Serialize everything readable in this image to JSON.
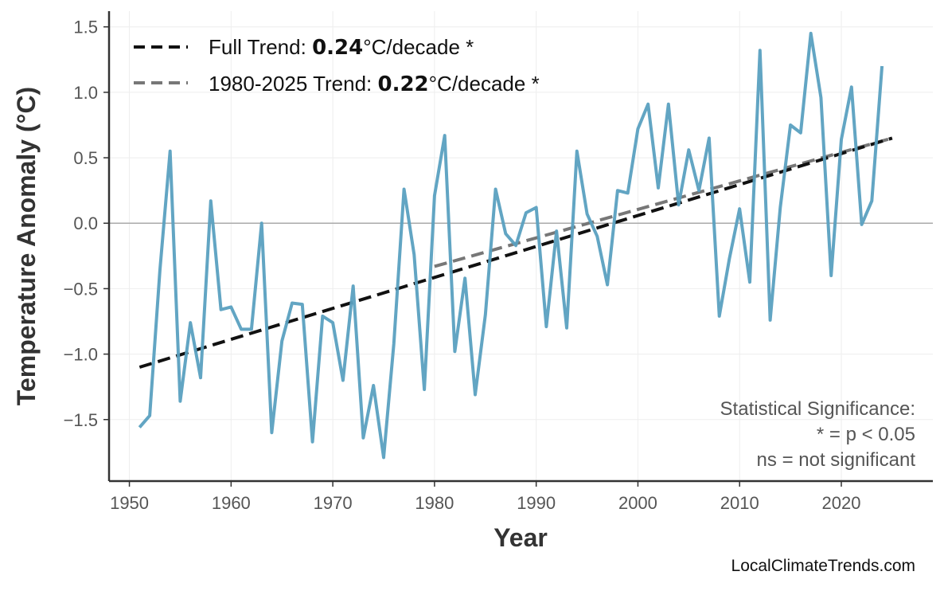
{
  "chart_data": {
    "type": "line",
    "title": "",
    "xlabel": "Year",
    "ylabel": "Temperature Anomaly (°C)",
    "xlim": [
      1948,
      2029
    ],
    "ylim": [
      -1.97,
      1.62
    ],
    "grid": true,
    "xticks": [
      1950,
      1960,
      1970,
      1980,
      1990,
      2000,
      2010,
      2020
    ],
    "yticks": [
      -1.5,
      -1.0,
      -0.5,
      0.0,
      0.5,
      1.0,
      1.5
    ],
    "ytick_labels": [
      "−1.5",
      "−1.0",
      "−0.5",
      "0.0",
      "0.5",
      "1.0",
      "1.5"
    ],
    "series": [
      {
        "color": "#5aa0c0",
        "x": [
          1951,
          1952,
          1953,
          1954,
          1955,
          1956,
          1957,
          1958,
          1959,
          1960,
          1961,
          1962,
          1963,
          1964,
          1965,
          1966,
          1967,
          1968,
          1969,
          1970,
          1971,
          1972,
          1973,
          1974,
          1975,
          1976,
          1977,
          1978,
          1979,
          1980,
          1981,
          1982,
          1983,
          1984,
          1985,
          1986,
          1987,
          1988,
          1989,
          1990,
          1991,
          1992,
          1993,
          1994,
          1995,
          1996,
          1997,
          1998,
          1999,
          2000,
          2001,
          2002,
          2003,
          2004,
          2005,
          2006,
          2007,
          2008,
          2009,
          2010,
          2011,
          2012,
          2013,
          2014,
          2015,
          2016,
          2017,
          2018,
          2019,
          2020,
          2021,
          2022,
          2023,
          2024
        ],
        "values": [
          -1.56,
          -1.47,
          -0.36,
          0.55,
          -1.36,
          -0.76,
          -1.18,
          0.17,
          -0.66,
          -0.64,
          -0.81,
          -0.81,
          0.0,
          -1.6,
          -0.9,
          -0.61,
          -0.62,
          -1.67,
          -0.71,
          -0.76,
          -1.2,
          -0.48,
          -1.64,
          -1.24,
          -1.79,
          -0.92,
          0.26,
          -0.24,
          -1.27,
          0.21,
          0.67,
          -0.98,
          -0.42,
          -1.31,
          -0.7,
          0.26,
          -0.08,
          -0.17,
          0.08,
          0.12,
          -0.79,
          -0.06,
          -0.8,
          0.55,
          0.07,
          -0.1,
          -0.47,
          0.25,
          0.23,
          0.72,
          0.91,
          0.27,
          0.91,
          0.14,
          0.56,
          0.25,
          0.65,
          -0.71,
          -0.27,
          0.11,
          -0.45,
          1.32,
          -0.74,
          0.12,
          0.75,
          0.69,
          1.45,
          0.96,
          -0.4,
          0.64,
          1.04,
          -0.01,
          0.17,
          1.2
        ]
      }
    ],
    "trend_lines": [
      {
        "name_prefix": "Full Trend: ",
        "rate": "0.24",
        "suffix": "°C/decade *",
        "x": [
          1951,
          2025
        ],
        "values": [
          -1.1,
          0.65
        ],
        "color": "#111111",
        "dash": true
      },
      {
        "name_prefix": "1980-2025 Trend: ",
        "rate": "0.22",
        "suffix": "°C/decade *",
        "x": [
          1980,
          2025
        ],
        "values": [
          -0.33,
          0.65
        ],
        "color": "#777777",
        "dash": true
      }
    ],
    "zero_line": true,
    "legend_placement": "top-left",
    "annotation": [
      "Statistical Significance:",
      "* = p < 0.05",
      "ns = not significant"
    ]
  },
  "watermark": "LocalClimateTrends.com"
}
